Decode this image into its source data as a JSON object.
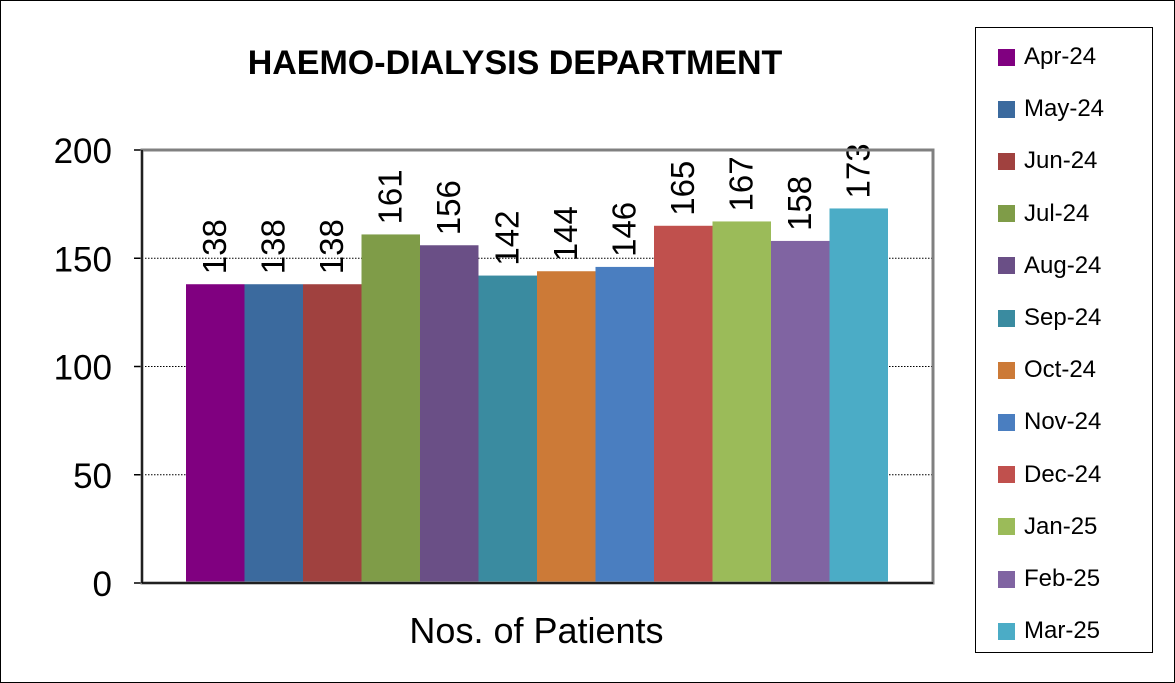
{
  "chart_data": {
    "type": "bar",
    "title": "HAEMO-DIALYSIS DEPARTMENT",
    "xlabel": "Nos. of Patients",
    "ylabel": "",
    "ylim": [
      0,
      200
    ],
    "yticks": [
      0,
      50,
      100,
      150,
      200
    ],
    "grid": true,
    "legend_position": "right",
    "series": [
      {
        "name": "Apr-24",
        "value": 138,
        "color": "#800080"
      },
      {
        "name": "May-24",
        "value": 138,
        "color": "#3B6A9E"
      },
      {
        "name": "Jun-24",
        "value": 138,
        "color": "#A0413F"
      },
      {
        "name": "Jul-24",
        "value": 161,
        "color": "#7F9C48"
      },
      {
        "name": "Aug-24",
        "value": 156,
        "color": "#6A4F86"
      },
      {
        "name": "Sep-24",
        "value": 142,
        "color": "#3A8BA0"
      },
      {
        "name": "Oct-24",
        "value": 144,
        "color": "#CC7A37"
      },
      {
        "name": "Nov-24",
        "value": 146,
        "color": "#4A7EC0"
      },
      {
        "name": "Dec-24",
        "value": 165,
        "color": "#C0504D"
      },
      {
        "name": "Jan-25",
        "value": 167,
        "color": "#9BBB59"
      },
      {
        "name": "Feb-25",
        "value": 158,
        "color": "#8064A2"
      },
      {
        "name": "Mar-25",
        "value": 173,
        "color": "#4BACC6"
      }
    ]
  }
}
